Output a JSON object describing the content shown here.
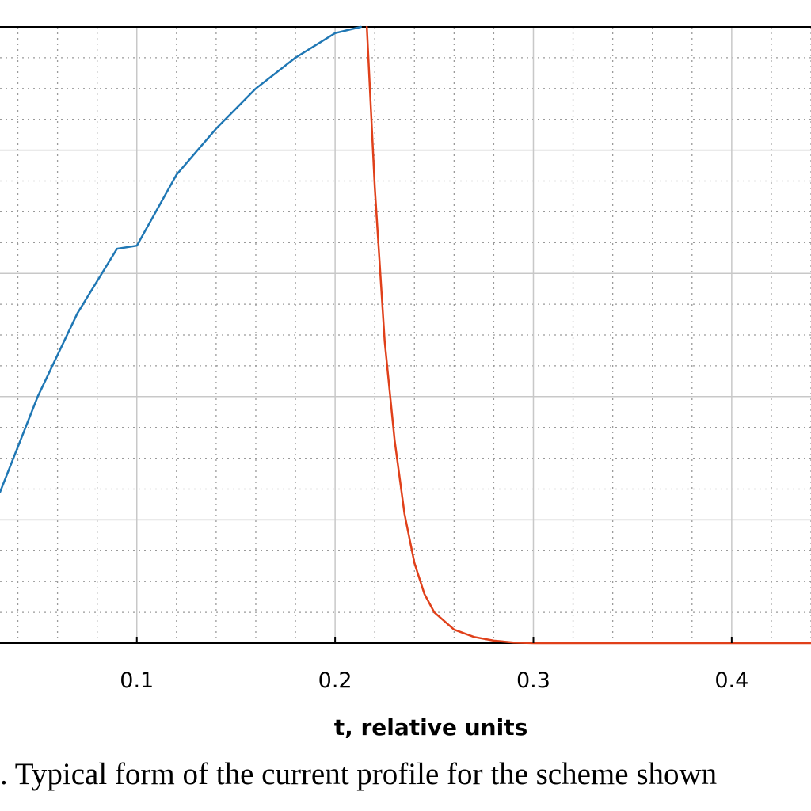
{
  "chart_data": {
    "type": "line",
    "title": "",
    "xlabel": "t, relative units",
    "ylabel": "",
    "xlim": [
      0.031,
      0.44
    ],
    "ylim": [
      0,
      1
    ],
    "xticks": [
      0.1,
      0.2,
      0.3,
      0.4
    ],
    "xtick_labels": [
      "0.1",
      "0.2",
      "0.3",
      "0.4"
    ],
    "grid": true,
    "minor_grid": true,
    "series": [
      {
        "color": "#1f77b4",
        "x": [
          0.031,
          0.05,
          0.07,
          0.09,
          0.1,
          0.12,
          0.14,
          0.16,
          0.18,
          0.2,
          0.213
        ],
        "y": [
          0.245,
          0.4,
          0.535,
          0.64,
          0.645,
          0.76,
          0.835,
          0.9,
          0.95,
          0.99,
          1.0
        ]
      },
      {
        "color": "#e0401a",
        "x": [
          0.216,
          0.22,
          0.225,
          0.23,
          0.235,
          0.24,
          0.245,
          0.25,
          0.26,
          0.27,
          0.28,
          0.29,
          0.3,
          0.35,
          0.44
        ],
        "y": [
          1.0,
          0.74,
          0.49,
          0.33,
          0.21,
          0.13,
          0.08,
          0.05,
          0.022,
          0.01,
          0.004,
          0.001,
          0.0,
          0.0,
          0.0
        ]
      }
    ]
  },
  "caption": ". Typical form of the current profile for the scheme shown"
}
